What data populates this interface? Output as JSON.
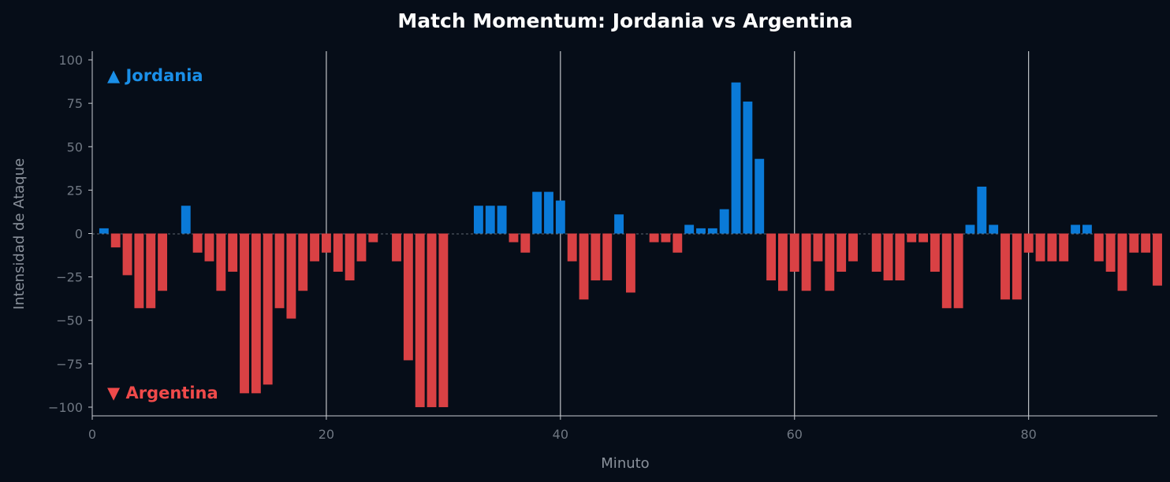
{
  "chart_data": {
    "type": "bar",
    "title": "Match Momentum: Jordania vs Argentina",
    "xlabel": "Minuto",
    "ylabel": "Intensidad de Ataque",
    "xlim": [
      0,
      91
    ],
    "ylim": [
      -105,
      105
    ],
    "x_ticks": [
      0,
      20,
      40,
      60,
      80
    ],
    "y_ticks": [
      -100,
      -75,
      -50,
      -25,
      0,
      25,
      50,
      75,
      100
    ],
    "x_tick_labels": [
      "0",
      "20",
      "40",
      "60",
      "80"
    ],
    "y_tick_labels": [
      "−100",
      "−75",
      "−50",
      "−25",
      "0",
      "25",
      "50",
      "75",
      "100"
    ],
    "vertical_lines": [
      20,
      40,
      60,
      80
    ],
    "grid": false,
    "team_labels": {
      "top": "▲ Jordania",
      "bottom": "▼ Argentina"
    },
    "colors": {
      "positive": "#0a7ad8",
      "negative": "#d94144",
      "positive_label": "#1a8fe8",
      "negative_label": "#f04a4a",
      "background": "#060d18"
    },
    "minutes": [
      1,
      2,
      3,
      4,
      5,
      6,
      7,
      8,
      9,
      10,
      11,
      12,
      13,
      14,
      15,
      16,
      17,
      18,
      19,
      20,
      21,
      22,
      23,
      24,
      25,
      26,
      27,
      28,
      29,
      30,
      31,
      32,
      33,
      34,
      35,
      36,
      37,
      38,
      39,
      40,
      41,
      42,
      43,
      44,
      45,
      46,
      47,
      48,
      49,
      50,
      51,
      52,
      53,
      54,
      55,
      56,
      57,
      58,
      59,
      60,
      61,
      62,
      63,
      64,
      65,
      66,
      67,
      68,
      69,
      70,
      71,
      72,
      73,
      74,
      75,
      76,
      77,
      78,
      79,
      80,
      81,
      82,
      83,
      84,
      85,
      86,
      87,
      88,
      89,
      90,
      91
    ],
    "values": [
      3,
      -8,
      -24,
      -43,
      -43,
      -33,
      0,
      16,
      -11,
      -16,
      -33,
      -22,
      -92,
      -92,
      -87,
      -43,
      -49,
      -33,
      -16,
      -11,
      -22,
      -27,
      -16,
      -5,
      0,
      -16,
      -73,
      -100,
      -100,
      -100,
      0,
      0,
      16,
      16,
      16,
      -5,
      -11,
      24,
      24,
      19,
      -16,
      -38,
      -27,
      -27,
      11,
      -34,
      0,
      -5,
      -5,
      -11,
      5,
      3,
      3,
      14,
      87,
      76,
      43,
      -27,
      -33,
      -22,
      -33,
      -16,
      -33,
      -22,
      -16,
      0,
      -22,
      -27,
      -27,
      -5,
      -5,
      -22,
      -43,
      -43,
      5,
      27,
      5,
      -38,
      -38,
      -11,
      -16,
      -16,
      -16,
      5,
      5,
      -16,
      -22,
      -33,
      -11,
      -11,
      -30
    ]
  }
}
